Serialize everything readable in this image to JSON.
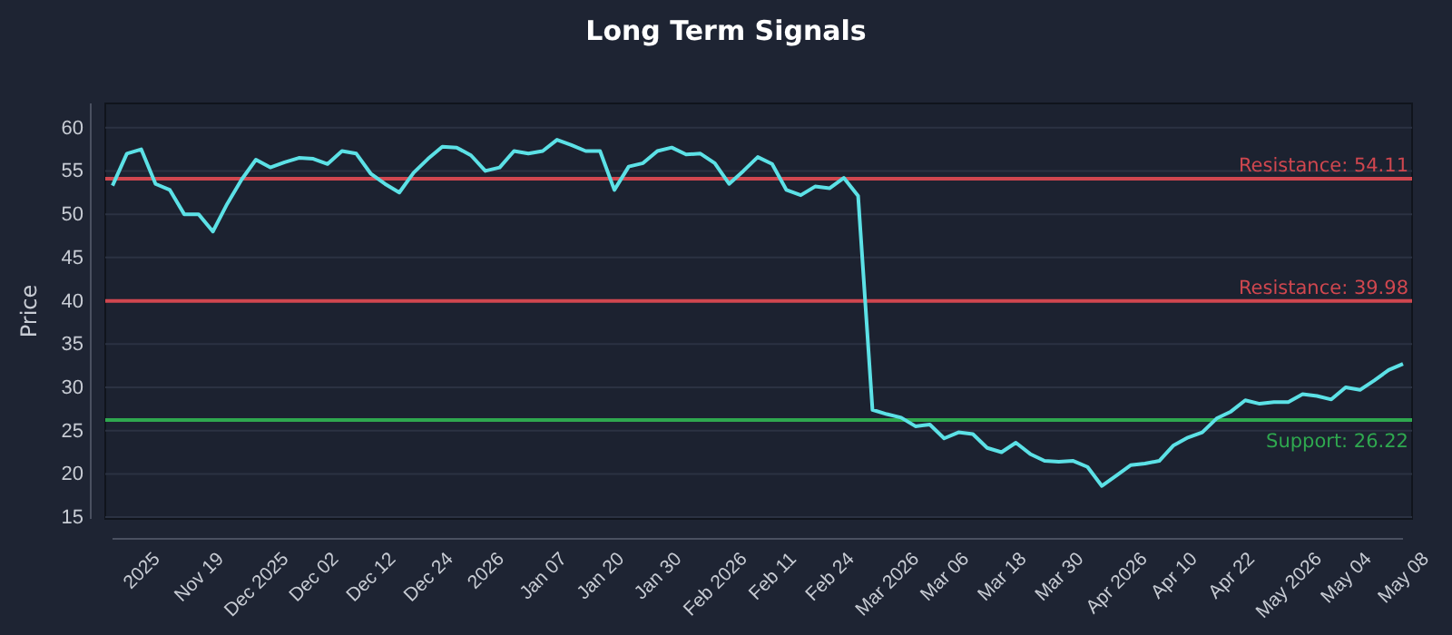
{
  "chart_data": {
    "type": "line",
    "title": "Long Term Signals",
    "ylabel": "Price",
    "categories": [
      null,
      null,
      "2025",
      null,
      null,
      null,
      "Nov 19",
      null,
      null,
      null,
      "Dec 2025",
      null,
      null,
      null,
      "Dec 02",
      null,
      null,
      null,
      "Dec 12",
      null,
      null,
      null,
      "Dec 24",
      null,
      null,
      null,
      "2026",
      null,
      null,
      null,
      "Jan 07",
      null,
      null,
      null,
      "Jan 20",
      null,
      null,
      null,
      "Jan 30",
      null,
      null,
      null,
      "Feb 2026",
      null,
      null,
      null,
      "Feb 11",
      null,
      null,
      null,
      "Feb 24",
      null,
      null,
      null,
      "Mar 2026",
      null,
      null,
      null,
      "Mar 06",
      null,
      null,
      null,
      "Mar 18",
      null,
      null,
      null,
      "Mar 30",
      null,
      null,
      null,
      "Apr 2026",
      null,
      null,
      null,
      "Apr 10",
      null,
      null,
      null,
      "Apr 22",
      null,
      null,
      null,
      "May 2026",
      null,
      null,
      null,
      "May 04",
      null,
      null,
      null,
      "May 08"
    ],
    "series": [
      {
        "color": "#5ce1e6",
        "values": [
          53.3,
          57.0,
          57.5,
          53.5,
          52.8,
          50.0,
          50.0,
          48.0,
          51.2,
          54.0,
          56.3,
          55.4,
          56.0,
          56.5,
          56.4,
          55.8,
          57.3,
          57.0,
          54.7,
          53.5,
          52.5,
          54.8,
          56.4,
          57.8,
          57.7,
          56.8,
          55.0,
          55.4,
          57.3,
          57.0,
          57.3,
          58.6,
          58.0,
          57.3,
          57.3,
          52.8,
          55.5,
          55.9,
          57.3,
          57.7,
          56.9,
          57.0,
          55.9,
          53.5,
          55.0,
          56.6,
          55.8,
          52.8,
          52.2,
          53.2,
          53.0,
          54.2,
          52.1,
          27.4,
          26.9,
          26.5,
          25.5,
          25.7,
          24.1,
          24.8,
          24.6,
          23.0,
          22.5,
          23.6,
          22.3,
          21.5,
          21.4,
          21.5,
          20.8,
          18.6,
          19.8,
          21.0,
          21.2,
          21.5,
          23.3,
          24.2,
          24.8,
          26.4,
          27.2,
          28.5,
          28.1,
          28.3,
          28.3,
          29.2,
          29.0,
          28.6,
          30.0,
          29.7,
          30.8,
          32.0,
          32.7
        ]
      }
    ],
    "ylim": [
      14.8,
      62.8
    ],
    "yticks": [
      15,
      20,
      25,
      30,
      35,
      40,
      45,
      50,
      55,
      60
    ],
    "grid": "y",
    "marker": "none",
    "line_style": "solid",
    "ref_lines": [
      {
        "axis": "y",
        "value": 54.11,
        "label": "Resistance: 54.11",
        "color": "#d0474f"
      },
      {
        "axis": "y",
        "value": 39.98,
        "label": "Resistance: 39.98",
        "color": "#d0474f"
      },
      {
        "axis": "y",
        "value": 26.22,
        "label": "Support: 26.22",
        "color": "#2fa84f"
      }
    ]
  }
}
